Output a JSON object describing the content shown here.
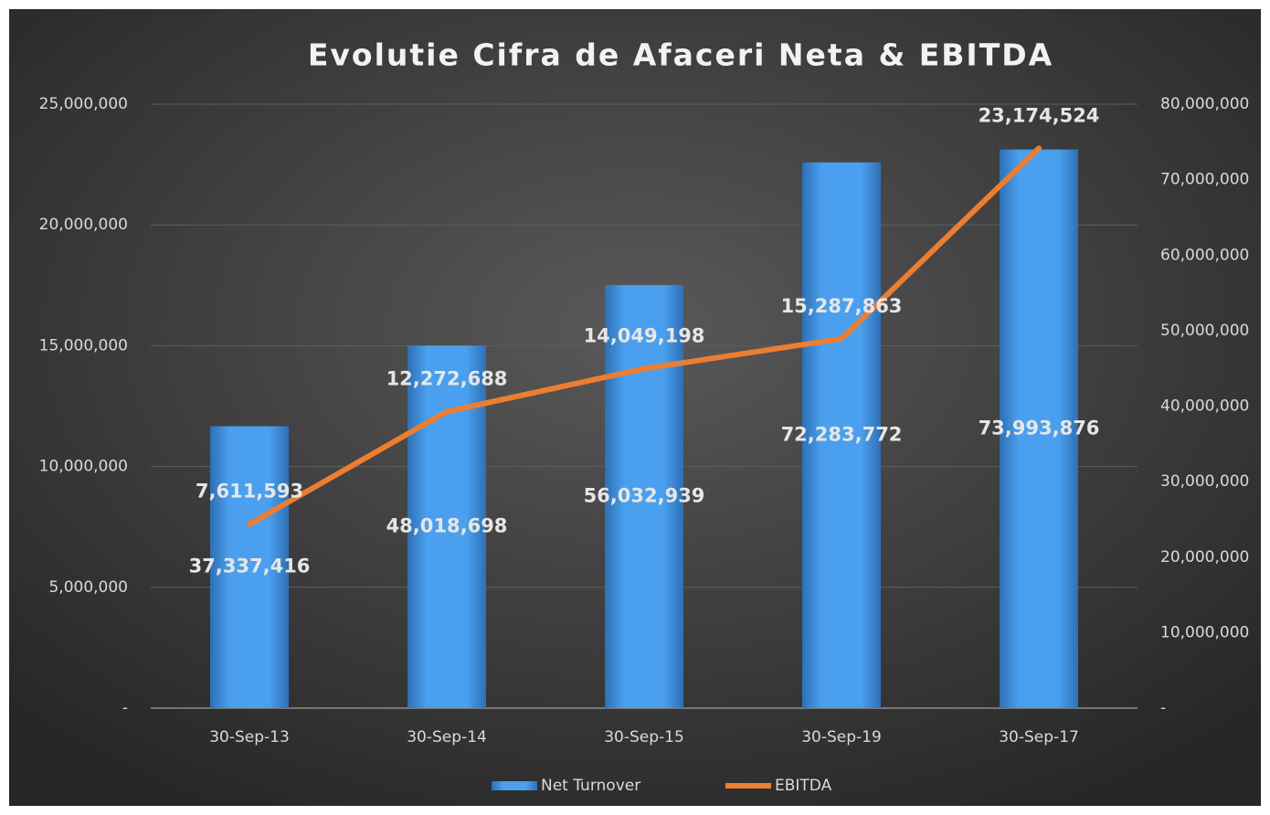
{
  "chart_data": {
    "type": "combo",
    "title": "Evolutie Cifra de Afaceri Neta & EBITDA",
    "categories": [
      "30-Sep-13",
      "30-Sep-14",
      "30-Sep-15",
      "30-Sep-19",
      "30-Sep-17"
    ],
    "series": [
      {
        "name": "Net Turnover",
        "type": "bar",
        "axis": "y2",
        "color": "#4a9eea",
        "values": [
          37337416,
          48018698,
          56032939,
          72283772,
          73993876
        ],
        "value_labels": [
          "37,337,416",
          "48,018,698",
          "56,032,939",
          "72,283,772",
          "73,993,876"
        ]
      },
      {
        "name": "EBITDA",
        "type": "line",
        "axis": "y",
        "color": "#ed7d31",
        "values": [
          7611593,
          12272688,
          14049198,
          15287863,
          23174524
        ],
        "value_labels": [
          "7,611,593",
          "12,272,688",
          "14,049,198",
          "15,287,863",
          "23,174,524"
        ]
      }
    ],
    "ylim": [
      0,
      25000000
    ],
    "yticks": [
      {
        "value": 0,
        "label": "-"
      },
      {
        "value": 5000000,
        "label": "5,000,000"
      },
      {
        "value": 10000000,
        "label": "10,000,000"
      },
      {
        "value": 15000000,
        "label": "15,000,000"
      },
      {
        "value": 20000000,
        "label": "20,000,000"
      },
      {
        "value": 25000000,
        "label": "25,000,000"
      }
    ],
    "y2lim": [
      0,
      80000000
    ],
    "y2ticks": [
      {
        "value": 0,
        "label": "-"
      },
      {
        "value": 10000000,
        "label": "10,000,000"
      },
      {
        "value": 20000000,
        "label": "20,000,000"
      },
      {
        "value": 30000000,
        "label": "30,000,000"
      },
      {
        "value": 40000000,
        "label": "40,000,000"
      },
      {
        "value": 50000000,
        "label": "50,000,000"
      },
      {
        "value": 60000000,
        "label": "60,000,000"
      },
      {
        "value": 70000000,
        "label": "70,000,000"
      },
      {
        "value": 80000000,
        "label": "80,000,000"
      }
    ],
    "grid": true,
    "legend": "bottom"
  }
}
